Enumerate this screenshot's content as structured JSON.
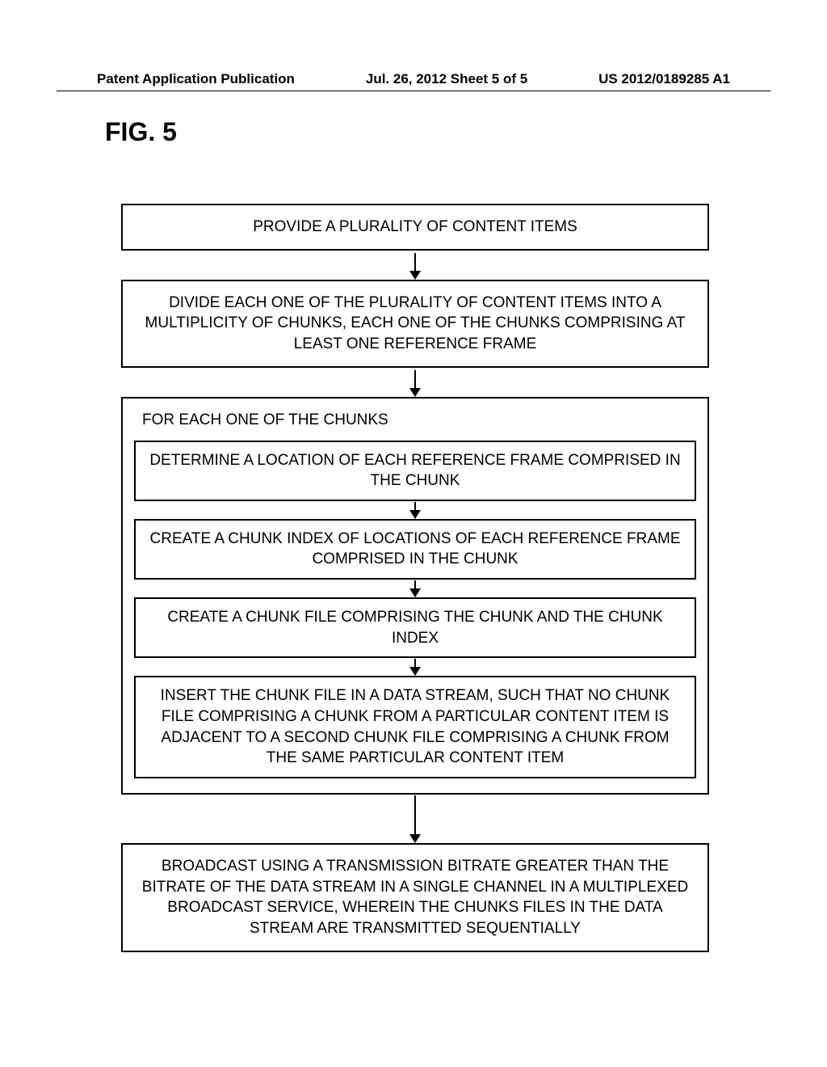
{
  "header": {
    "left": "Patent Application Publication",
    "center": "Jul. 26, 2012   Sheet 5 of 5",
    "right": "US 2012/0189285 A1"
  },
  "figure_label": "FIG. 5",
  "flowchart": {
    "type": "flowchart",
    "box1": "PROVIDE A PLURALITY OF CONTENT ITEMS",
    "box2": "DIVIDE EACH ONE OF THE PLURALITY OF CONTENT ITEMS INTO A MULTIPLICITY OF CHUNKS, EACH ONE OF THE CHUNKS COMPRISING AT LEAST ONE REFERENCE FRAME",
    "loop_label": "FOR EACH ONE OF THE CHUNKS",
    "inner1": "DETERMINE A LOCATION OF EACH REFERENCE FRAME COMPRISED IN THE CHUNK",
    "inner2": "CREATE A CHUNK INDEX OF LOCATIONS OF EACH REFERENCE FRAME COMPRISED IN THE CHUNK",
    "inner3": "CREATE A CHUNK FILE COMPRISING THE CHUNK AND THE CHUNK INDEX",
    "inner4": "INSERT THE CHUNK FILE IN A DATA STREAM, SUCH THAT NO CHUNK FILE COMPRISING A CHUNK FROM A PARTICULAR CONTENT ITEM IS ADJACENT TO A SECOND CHUNK FILE COMPRISING A CHUNK FROM THE SAME PARTICULAR CONTENT ITEM",
    "box4": "BROADCAST USING A TRANSMISSION BITRATE GREATER THAN THE BITRATE OF THE DATA STREAM IN A SINGLE CHANNEL IN A MULTIPLEXED BROADCAST SERVICE, WHEREIN THE CHUNKS FILES IN THE DATA STREAM ARE TRANSMITTED SEQUENTIALLY",
    "colors": {
      "border": "#000000",
      "background": "#ffffff",
      "text": "#000000"
    },
    "fontsize": 19,
    "border_width": 2
  }
}
